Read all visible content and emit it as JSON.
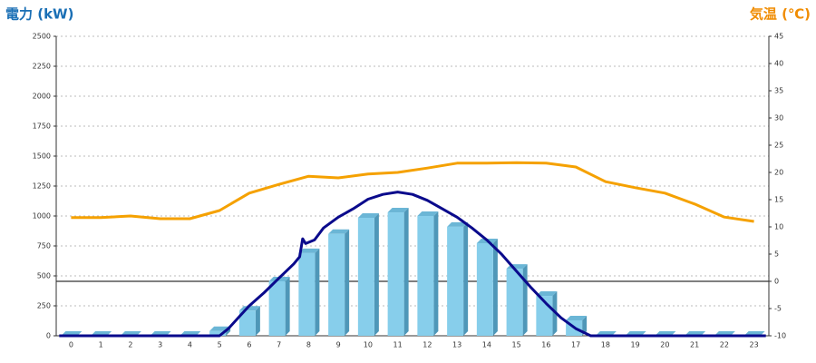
{
  "chart_data": {
    "type": "bar",
    "title": "電力 (kW)",
    "y2_title": "気温 (℃)",
    "categories": [
      "0",
      "1",
      "2",
      "3",
      "4",
      "5",
      "6",
      "7",
      "8",
      "9",
      "10",
      "11",
      "12",
      "13",
      "14",
      "15",
      "16",
      "17",
      "18",
      "19",
      "20",
      "21",
      "22",
      "23"
    ],
    "ylim": [
      0,
      2500
    ],
    "yticks": [
      0,
      250,
      500,
      750,
      1000,
      1250,
      1500,
      1750,
      2000,
      2250,
      2500
    ],
    "y2lim": [
      -10,
      45
    ],
    "y2ticks": [
      -10,
      -5,
      0,
      5,
      10,
      15,
      20,
      25,
      30,
      35,
      40,
      45
    ],
    "grid": true,
    "zero_line_y2": 0,
    "series": [
      {
        "kind": "bar",
        "color": "#87ceeb",
        "values": [
          0,
          0,
          0,
          0,
          0,
          40,
          210,
          455,
          690,
          850,
          985,
          1030,
          1000,
          910,
          773,
          560,
          333,
          129,
          0,
          0,
          0,
          0,
          0,
          0
        ]
      },
      {
        "kind": "line",
        "axis": "y2",
        "color": "#f5a100",
        "values": [
          11.7,
          11.7,
          12,
          11.5,
          11.5,
          13,
          16.2,
          17.8,
          19.3,
          19,
          19.7,
          20,
          20.8,
          21.7,
          21.7,
          21.8,
          21.7,
          21,
          18.3,
          17.2,
          16.2,
          14.2,
          11.8,
          11
        ]
      },
      {
        "kind": "line",
        "color": "#0a0a8c",
        "x": [
          -0.4,
          5.0,
          5.3,
          5.7,
          6.0,
          6.5,
          7.0,
          7.5,
          7.7,
          7.8,
          7.9,
          8.2,
          8.5,
          9.0,
          9.5,
          10.0,
          10.5,
          11.0,
          11.5,
          12.0,
          12.5,
          13.0,
          13.5,
          14.0,
          14.5,
          15.0,
          15.5,
          16.0,
          16.5,
          17.0,
          17.5,
          23.4
        ],
        "values": [
          0,
          0,
          60,
          170,
          250,
          360,
          480,
          600,
          660,
          810,
          770,
          800,
          900,
          990,
          1060,
          1140,
          1180,
          1200,
          1180,
          1130,
          1060,
          990,
          900,
          800,
          680,
          540,
          400,
          270,
          150,
          60,
          0,
          0
        ]
      }
    ]
  }
}
